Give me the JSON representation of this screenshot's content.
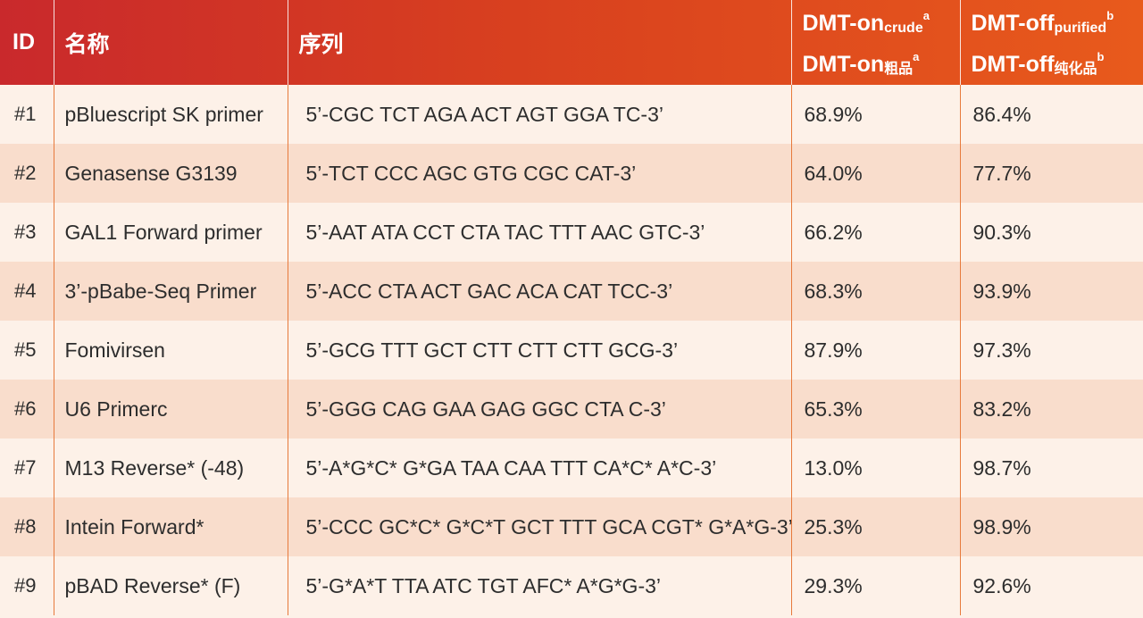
{
  "header": {
    "id": "ID",
    "name": "名称",
    "sequence": "序列",
    "dmt_on_line1": "DMT-on",
    "dmt_on_line1_sub": "crude",
    "dmt_on_line1_sup": "a",
    "dmt_on_line2": "DMT-on",
    "dmt_on_line2_sub": "粗品",
    "dmt_on_line2_sup": "a",
    "dmt_off_line1": "DMT-off",
    "dmt_off_line1_sub": "purified",
    "dmt_off_line1_sup": "b",
    "dmt_off_line2": "DMT-off",
    "dmt_off_line2_sub": "纯化品",
    "dmt_off_line2_sup": "b"
  },
  "rows": [
    {
      "id": "#1",
      "name": "pBluescript SK primer",
      "sequence": "5’-CGC TCT AGA ACT AGT GGA TC-3’",
      "dmt_on": "68.9%",
      "dmt_off": "86.4%"
    },
    {
      "id": "#2",
      "name": "Genasense G3139",
      "sequence": "5’-TCT CCC AGC GTG CGC CAT-3’",
      "dmt_on": "64.0%",
      "dmt_off": "77.7%"
    },
    {
      "id": "#3",
      "name": "GAL1 Forward primer",
      "sequence": "5’-AAT ATA CCT CTA TAC TTT AAC GTC-3’",
      "dmt_on": "66.2%",
      "dmt_off": "90.3%"
    },
    {
      "id": "#4",
      "name": "3’-pBabe-Seq Primer",
      "sequence": "5’-ACC CTA ACT GAC ACA CAT TCC-3’",
      "dmt_on": "68.3%",
      "dmt_off": "93.9%"
    },
    {
      "id": "#5",
      "name": "Fomivirsen",
      "sequence": "5’-GCG TTT GCT CTT CTT CTT GCG-3’",
      "dmt_on": "87.9%",
      "dmt_off": "97.3%"
    },
    {
      "id": "#6",
      "name": "U6 Primerc",
      "sequence": "5’-GGG CAG GAA GAG GGC CTA C-3’",
      "dmt_on": "65.3%",
      "dmt_off": "83.2%"
    },
    {
      "id": "#7",
      "name": "M13 Reverse* (-48)",
      "sequence": "5’-A*G*C* G*GA TAA CAA TTT CA*C* A*C-3’",
      "dmt_on": "13.0%",
      "dmt_off": "98.7%"
    },
    {
      "id": "#8",
      "name": "Intein Forward*",
      "sequence": "5’-CCC GC*C* G*C*T GCT TTT GCA CGT* G*A*G-3’",
      "dmt_on": "25.3%",
      "dmt_off": "98.9%"
    },
    {
      "id": "#9",
      "name": "pBAD Reverse* (F)",
      "sequence": "5’-G*A*T TTA ATC TGT AFC* A*G*G-3’",
      "dmt_on": "29.3%",
      "dmt_off": "92.6%"
    }
  ],
  "colors": {
    "header_start": "#c9292c",
    "header_end": "#e85a1c",
    "row_light": "#fdf1e8",
    "row_dark": "#f9ddcc",
    "divider": "#e77a3c"
  }
}
